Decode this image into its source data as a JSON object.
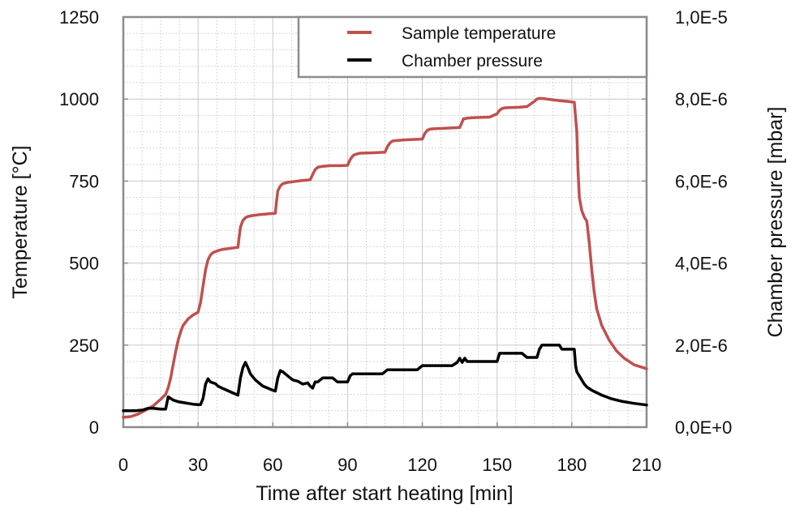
{
  "chart_data": {
    "type": "line",
    "title": "",
    "xlabel": "Time after start heating [min]",
    "ylabel": "Temperature [°C]",
    "y2label": "Chamber pressure [mbar]",
    "xlim": [
      0,
      210
    ],
    "ylim": [
      0,
      1250
    ],
    "y2lim": [
      0,
      1e-05
    ],
    "grid": true,
    "legend_position": "top-right",
    "x_ticks": [
      0,
      30,
      60,
      90,
      120,
      150,
      180,
      210
    ],
    "x_tick_labels": [
      "0",
      "30",
      "60",
      "90",
      "120",
      "150",
      "180",
      "210"
    ],
    "y_ticks": [
      0,
      250,
      500,
      750,
      1000,
      1250
    ],
    "y_tick_labels": [
      "0",
      "250",
      "500",
      "750",
      "1000",
      "1250"
    ],
    "y2_ticks": [
      0,
      2e-06,
      4e-06,
      6e-06,
      8e-06,
      1e-05
    ],
    "y2_tick_labels": [
      "0,0E+0",
      "2,0E-6",
      "4,0E-6",
      "6,0E-6",
      "8,0E-6",
      "1,0E-5"
    ],
    "series": [
      {
        "name": "Sample temperature",
        "axis": "left",
        "color": "#c0504d",
        "x": [
          0,
          3,
          6,
          9,
          12,
          15,
          17,
          18,
          19,
          20,
          21,
          22,
          23,
          24,
          26,
          28,
          30,
          31,
          32,
          33,
          34,
          35,
          36,
          38,
          40,
          43,
          46,
          46.5,
          47,
          48,
          49,
          50,
          52,
          55,
          58,
          61,
          61.5,
          62,
          63,
          64,
          66,
          69,
          72,
          75,
          76,
          77,
          78,
          80,
          83,
          87,
          90,
          91,
          92,
          93,
          95,
          99,
          102,
          105,
          106,
          107,
          108,
          110,
          114,
          117,
          120,
          121,
          122,
          123,
          124,
          126,
          129,
          132,
          135,
          136,
          136.5,
          137,
          138,
          140,
          143,
          147,
          150,
          151,
          152,
          153,
          155,
          159,
          162,
          165,
          166,
          167,
          169,
          172,
          175,
          178,
          181,
          182,
          182.5,
          183,
          184,
          185,
          186,
          187,
          188,
          189,
          190,
          192,
          195,
          198,
          201,
          205,
          210
        ],
        "values": [
          30,
          32,
          40,
          52,
          65,
          85,
          100,
          120,
          150,
          190,
          230,
          265,
          290,
          310,
          330,
          342,
          350,
          380,
          430,
          480,
          510,
          525,
          532,
          538,
          542,
          545,
          548,
          580,
          610,
          630,
          638,
          642,
          645,
          648,
          650,
          652,
          690,
          720,
          735,
          742,
          746,
          749,
          752,
          754,
          770,
          785,
          792,
          795,
          797,
          797,
          798,
          815,
          826,
          831,
          835,
          836,
          837,
          838,
          855,
          866,
          872,
          874,
          876,
          877,
          878,
          895,
          905,
          908,
          909,
          910,
          911,
          912,
          913,
          930,
          940,
          940,
          942,
          943,
          944,
          945,
          955,
          966,
          971,
          973,
          974,
          975,
          977,
          993,
          1000,
          1002,
          1001,
          998,
          995,
          993,
          990,
          900,
          780,
          700,
          660,
          640,
          628,
          560,
          480,
          410,
          360,
          310,
          265,
          232,
          210,
          190,
          178
        ]
      },
      {
        "name": "Chamber pressure",
        "axis": "right",
        "color": "#000000",
        "x": [
          0,
          5,
          8,
          10,
          12,
          15,
          17,
          18,
          19,
          20,
          22,
          24,
          26,
          28,
          30,
          31,
          32,
          33,
          34,
          35,
          36,
          37,
          38,
          40,
          43,
          46,
          47,
          48,
          49,
          50,
          51,
          53,
          56,
          58,
          60,
          61,
          62,
          63,
          64,
          66,
          68,
          70,
          72,
          74,
          75,
          76,
          77,
          78,
          80,
          82,
          84,
          86,
          88,
          90,
          91,
          92,
          94,
          100,
          104,
          105,
          106,
          108,
          114,
          118,
          119,
          120,
          122,
          128,
          132,
          134,
          135,
          136,
          137,
          138,
          140,
          145,
          150,
          151,
          152,
          156,
          160,
          162,
          164,
          165,
          166,
          167,
          168,
          172,
          175,
          176,
          177,
          178,
          180,
          181,
          181.5,
          182,
          183,
          184,
          185,
          186,
          188,
          192,
          196,
          200,
          205,
          210
        ],
        "values": [
          4e-07,
          4e-07,
          4.2e-07,
          4.6e-07,
          4.6e-07,
          4.4e-07,
          4.4e-07,
          7.4e-07,
          7e-07,
          6.6e-07,
          6.2e-07,
          6e-07,
          5.8e-07,
          5.6e-07,
          5.5e-07,
          5.5e-07,
          7e-07,
          1.05e-06,
          1.18e-06,
          1.1e-06,
          1.08e-06,
          1.06e-06,
          1e-06,
          9.4e-07,
          8.6e-07,
          7.8e-07,
          1.2e-06,
          1.45e-06,
          1.58e-06,
          1.45e-06,
          1.3e-06,
          1.15e-06,
          1e-06,
          9.5e-07,
          9e-07,
          8.8e-07,
          1.2e-06,
          1.38e-06,
          1.35e-06,
          1.25e-06,
          1.15e-06,
          1.12e-06,
          1.05e-06,
          1.08e-06,
          1e-06,
          9.5e-07,
          1.1e-06,
          1.1e-06,
          1.2e-06,
          1.2e-06,
          1.2e-06,
          1.1e-06,
          1.1e-06,
          1.1e-06,
          1.25e-06,
          1.3e-06,
          1.3e-06,
          1.3e-06,
          1.3e-06,
          1.35e-06,
          1.4e-06,
          1.4e-06,
          1.4e-06,
          1.4e-06,
          1.45e-06,
          1.5e-06,
          1.5e-06,
          1.5e-06,
          1.5e-06,
          1.58e-06,
          1.68e-06,
          1.58e-06,
          1.68e-06,
          1.6e-06,
          1.6e-06,
          1.6e-06,
          1.6e-06,
          1.8e-06,
          1.8e-06,
          1.8e-06,
          1.8e-06,
          1.7e-06,
          1.7e-06,
          1.7e-06,
          1.7e-06,
          1.9e-06,
          2e-06,
          2e-06,
          2e-06,
          1.9e-06,
          1.9e-06,
          1.9e-06,
          1.9e-06,
          1.9e-06,
          1.5e-06,
          1.35e-06,
          1.25e-06,
          1.15e-06,
          1.05e-06,
          9.8e-07,
          9e-07,
          7.8e-07,
          6.9e-07,
          6.3e-07,
          5.8e-07,
          5.4e-07
        ]
      }
    ],
    "annotations": []
  }
}
